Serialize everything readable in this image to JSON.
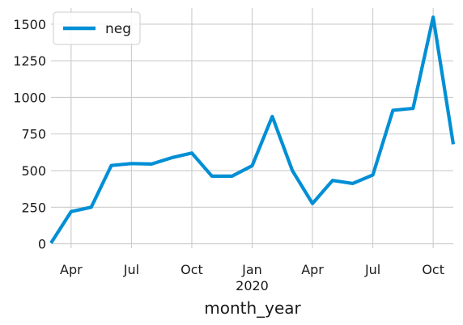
{
  "chart_data": {
    "type": "line",
    "title": "",
    "xlabel": "month_year",
    "ylabel": "",
    "x": [
      "2019-03",
      "2019-04",
      "2019-05",
      "2019-06",
      "2019-07",
      "2019-08",
      "2019-09",
      "2019-10",
      "2019-11",
      "2019-12",
      "2020-01",
      "2020-02",
      "2020-03",
      "2020-04",
      "2020-05",
      "2020-06",
      "2020-07",
      "2020-08",
      "2020-09",
      "2020-10",
      "2020-11"
    ],
    "series": [
      {
        "name": "neg",
        "values": [
          5,
          220,
          250,
          535,
          548,
          545,
          588,
          620,
          462,
          462,
          533,
          870,
          500,
          275,
          433,
          412,
          470,
          912,
          925,
          1548,
          680
        ]
      }
    ],
    "xlim": [
      "2019-03",
      "2020-11"
    ],
    "ylim": [
      -30,
      1610
    ],
    "y_ticks": [
      0,
      250,
      500,
      750,
      1000,
      1250,
      1500
    ],
    "x_ticks": [
      {
        "at": "2019-04",
        "label": "Apr",
        "sublabel": ""
      },
      {
        "at": "2019-07",
        "label": "Jul",
        "sublabel": ""
      },
      {
        "at": "2019-10",
        "label": "Oct",
        "sublabel": ""
      },
      {
        "at": "2020-01",
        "label": "Jan",
        "sublabel": "2020"
      },
      {
        "at": "2020-04",
        "label": "Apr",
        "sublabel": ""
      },
      {
        "at": "2020-07",
        "label": "Jul",
        "sublabel": ""
      },
      {
        "at": "2020-10",
        "label": "Oct",
        "sublabel": ""
      }
    ],
    "grid": true,
    "legend_position": "top-left",
    "colors": {
      "line": "#008fd5",
      "grid": "#cbcbcb",
      "background": "#ffffff"
    }
  }
}
